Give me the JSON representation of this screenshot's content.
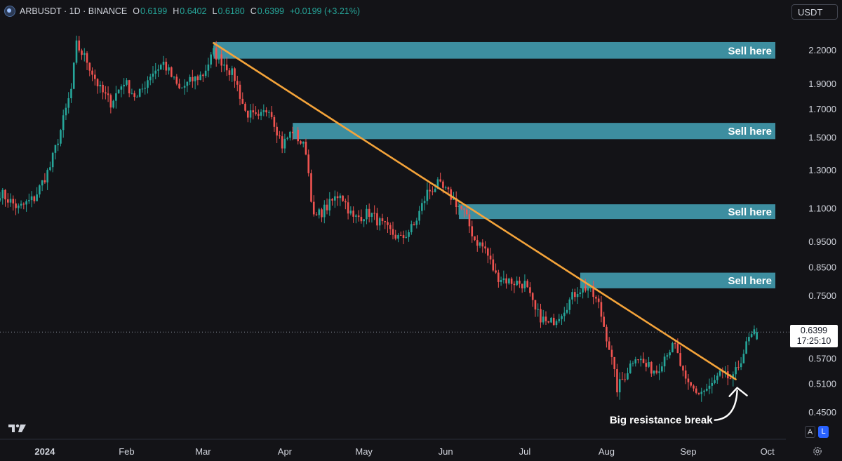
{
  "header": {
    "symbol": "ARBUSDT · 1D · BINANCE",
    "open_label": "O",
    "open": "0.6199",
    "high_label": "H",
    "high": "0.6402",
    "low_label": "L",
    "low": "0.6180",
    "close_label": "C",
    "close": "0.6399",
    "change": "+0.0199 (+3.21%)"
  },
  "toolbar": {
    "currency": "USDT",
    "auto_label": "A",
    "log_label": "L"
  },
  "price_tag": {
    "price": "0.6399",
    "countdown": "17:25:10"
  },
  "colors": {
    "background": "#131317",
    "bull": "#26a69a",
    "bear": "#ef5350",
    "zone": "#3d8ea0",
    "trendline": "#f5a43a",
    "annotation": "#ffffff"
  },
  "chart_data": {
    "type": "candlestick",
    "title": "",
    "y_scale": "log",
    "ylim": [
      0.4,
      2.5
    ],
    "xlim": [
      "2023-12-15",
      "2024-10-08"
    ],
    "y_ticks": [
      "2.2000",
      "1.9000",
      "1.7000",
      "1.5000",
      "1.3000",
      "1.1000",
      "0.9500",
      "0.8500",
      "0.7500",
      "0.5700",
      "0.5100",
      "0.4500"
    ],
    "x_ticks": [
      {
        "label": "2024",
        "date": "2024-01-01",
        "bold": true
      },
      {
        "label": "Feb",
        "date": "2024-02-01"
      },
      {
        "label": "Mar",
        "date": "2024-03-01"
      },
      {
        "label": "Apr",
        "date": "2024-04-01"
      },
      {
        "label": "May",
        "date": "2024-05-01"
      },
      {
        "label": "Jun",
        "date": "2024-06-01"
      },
      {
        "label": "Jul",
        "date": "2024-07-01"
      },
      {
        "label": "Aug",
        "date": "2024-08-01"
      },
      {
        "label": "Sep",
        "date": "2024-09-01"
      },
      {
        "label": "Oct",
        "date": "2024-10-01"
      }
    ],
    "last_price": 0.6399,
    "sell_zones": [
      {
        "label": "Sell here",
        "start": "2024-03-05",
        "low": 2.12,
        "high": 2.28
      },
      {
        "label": "Sell here",
        "start": "2024-04-04",
        "low": 1.49,
        "high": 1.6
      },
      {
        "label": "Sell here",
        "start": "2024-06-06",
        "low": 1.05,
        "high": 1.12
      },
      {
        "label": "Sell here",
        "start": "2024-07-22",
        "low": 0.775,
        "high": 0.83
      }
    ],
    "trendline": {
      "start": {
        "date": "2024-03-05",
        "price": 2.27
      },
      "end": {
        "date": "2024-09-19",
        "price": 0.52
      }
    },
    "annotation": {
      "text": "Big resistance break",
      "date": "2024-09-19",
      "price": 0.52
    },
    "anchors": [
      [
        "2023-12-15",
        1.18
      ],
      [
        "2023-12-22",
        1.1
      ],
      [
        "2023-12-28",
        1.15
      ],
      [
        "2024-01-03",
        1.32
      ],
      [
        "2024-01-07",
        1.55
      ],
      [
        "2024-01-11",
        1.85
      ],
      [
        "2024-01-13",
        2.25
      ],
      [
        "2024-01-17",
        2.1
      ],
      [
        "2024-01-22",
        1.85
      ],
      [
        "2024-01-26",
        1.75
      ],
      [
        "2024-01-31",
        1.92
      ],
      [
        "2024-02-05",
        1.78
      ],
      [
        "2024-02-10",
        1.98
      ],
      [
        "2024-02-15",
        2.08
      ],
      [
        "2024-02-21",
        1.85
      ],
      [
        "2024-02-26",
        1.93
      ],
      [
        "2024-03-01",
        1.98
      ],
      [
        "2024-03-05",
        2.18
      ],
      [
        "2024-03-10",
        2.05
      ],
      [
        "2024-03-13",
        1.95
      ],
      [
        "2024-03-17",
        1.68
      ],
      [
        "2024-03-22",
        1.62
      ],
      [
        "2024-03-26",
        1.72
      ],
      [
        "2024-03-31",
        1.45
      ],
      [
        "2024-04-04",
        1.55
      ],
      [
        "2024-04-09",
        1.42
      ],
      [
        "2024-04-12",
        1.05
      ],
      [
        "2024-04-18",
        1.12
      ],
      [
        "2024-04-22",
        1.18
      ],
      [
        "2024-04-27",
        1.05
      ],
      [
        "2024-05-03",
        1.08
      ],
      [
        "2024-05-10",
        1.0
      ],
      [
        "2024-05-15",
        0.96
      ],
      [
        "2024-05-20",
        1.02
      ],
      [
        "2024-05-25",
        1.18
      ],
      [
        "2024-05-29",
        1.22
      ],
      [
        "2024-06-03",
        1.16
      ],
      [
        "2024-06-08",
        1.08
      ],
      [
        "2024-06-12",
        0.96
      ],
      [
        "2024-06-16",
        0.92
      ],
      [
        "2024-06-20",
        0.82
      ],
      [
        "2024-06-25",
        0.8
      ],
      [
        "2024-07-01",
        0.79
      ],
      [
        "2024-07-05",
        0.7
      ],
      [
        "2024-07-10",
        0.66
      ],
      [
        "2024-07-15",
        0.7
      ],
      [
        "2024-07-21",
        0.77
      ],
      [
        "2024-07-25",
        0.78
      ],
      [
        "2024-07-29",
        0.72
      ],
      [
        "2024-08-02",
        0.6
      ],
      [
        "2024-08-05",
        0.5
      ],
      [
        "2024-08-08",
        0.53
      ],
      [
        "2024-08-12",
        0.58
      ],
      [
        "2024-08-16",
        0.55
      ],
      [
        "2024-08-20",
        0.54
      ],
      [
        "2024-08-24",
        0.59
      ],
      [
        "2024-08-27",
        0.6
      ],
      [
        "2024-08-31",
        0.51
      ],
      [
        "2024-09-05",
        0.49
      ],
      [
        "2024-09-09",
        0.5
      ],
      [
        "2024-09-13",
        0.53
      ],
      [
        "2024-09-18",
        0.52
      ],
      [
        "2024-09-21",
        0.57
      ],
      [
        "2024-09-24",
        0.62
      ],
      [
        "2024-09-27",
        0.6399
      ]
    ]
  }
}
